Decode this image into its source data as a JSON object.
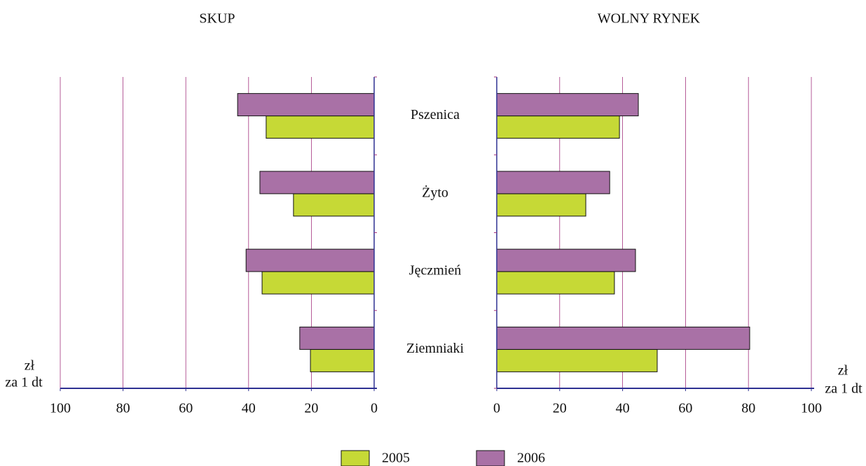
{
  "chart_data": {
    "type": "butterfly",
    "categories": [
      "Pszenica",
      "Żyto",
      "Jęczmień",
      "Ziemniaki"
    ],
    "xlabel": [
      "zł",
      "za 1 dt"
    ],
    "series": [
      {
        "name": "2005",
        "color": "#c6d936"
      },
      {
        "name": "2006",
        "color": "#a971a6"
      }
    ],
    "grid": true,
    "panels": [
      {
        "title": "SKUP",
        "direction": "left",
        "xlim": [
          0,
          100
        ],
        "xticks": [
          0,
          20,
          40,
          60,
          80,
          100
        ],
        "series": [
          {
            "values": [
              34.4,
              25.7,
              35.7,
              20.3
            ]
          },
          {
            "values": [
              43.5,
              36.4,
              40.8,
              23.7
            ]
          }
        ]
      },
      {
        "title": "WOLNY RYNEK",
        "direction": "right",
        "xlim": [
          0,
          100
        ],
        "xticks": [
          0,
          20,
          40,
          60,
          80,
          100
        ],
        "series": [
          {
            "values": [
              39.0,
              28.3,
              37.4,
              51.0
            ]
          },
          {
            "values": [
              45.0,
              35.9,
              44.1,
              80.4
            ]
          }
        ]
      }
    ]
  }
}
